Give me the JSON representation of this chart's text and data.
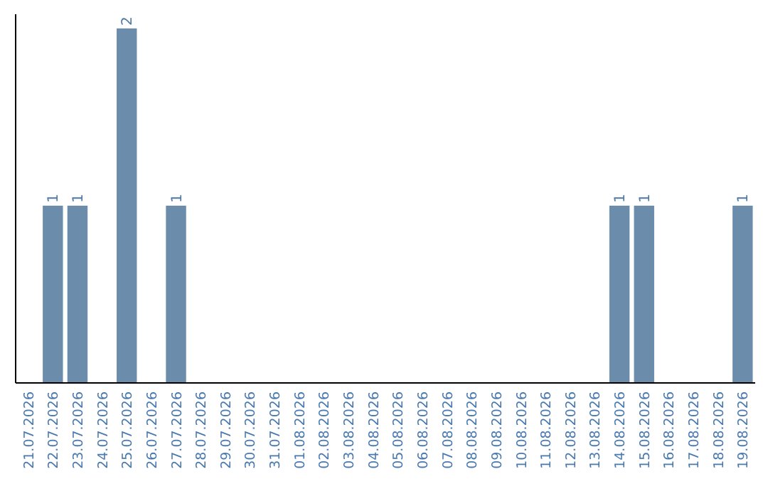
{
  "chart_data": {
    "type": "bar",
    "categories": [
      "21.07.2026",
      "22.07.2026",
      "23.07.2026",
      "24.07.2026",
      "25.07.2026",
      "26.07.2026",
      "27.07.2026",
      "28.07.2026",
      "29.07.2026",
      "30.07.2026",
      "31.07.2026",
      "01.08.2026",
      "02.08.2026",
      "03.08.2026",
      "04.08.2026",
      "05.08.2026",
      "06.08.2026",
      "07.08.2026",
      "08.08.2026",
      "09.08.2026",
      "10.08.2026",
      "11.08.2026",
      "12.08.2026",
      "13.08.2026",
      "14.08.2026",
      "15.08.2026",
      "16.08.2026",
      "17.08.2026",
      "18.08.2026",
      "19.08.2026"
    ],
    "values": [
      0,
      1,
      1,
      0,
      2,
      0,
      1,
      0,
      0,
      0,
      0,
      0,
      0,
      0,
      0,
      0,
      0,
      0,
      0,
      0,
      0,
      0,
      0,
      0,
      1,
      1,
      0,
      0,
      0,
      1
    ],
    "value_labels": [
      null,
      "1",
      "1",
      null,
      "2",
      null,
      "1",
      null,
      null,
      null,
      null,
      null,
      null,
      null,
      null,
      null,
      null,
      null,
      null,
      null,
      null,
      null,
      null,
      null,
      "1",
      "1",
      null,
      null,
      null,
      "1"
    ],
    "color": "#6b8cab",
    "tick_labels": "x"
  }
}
